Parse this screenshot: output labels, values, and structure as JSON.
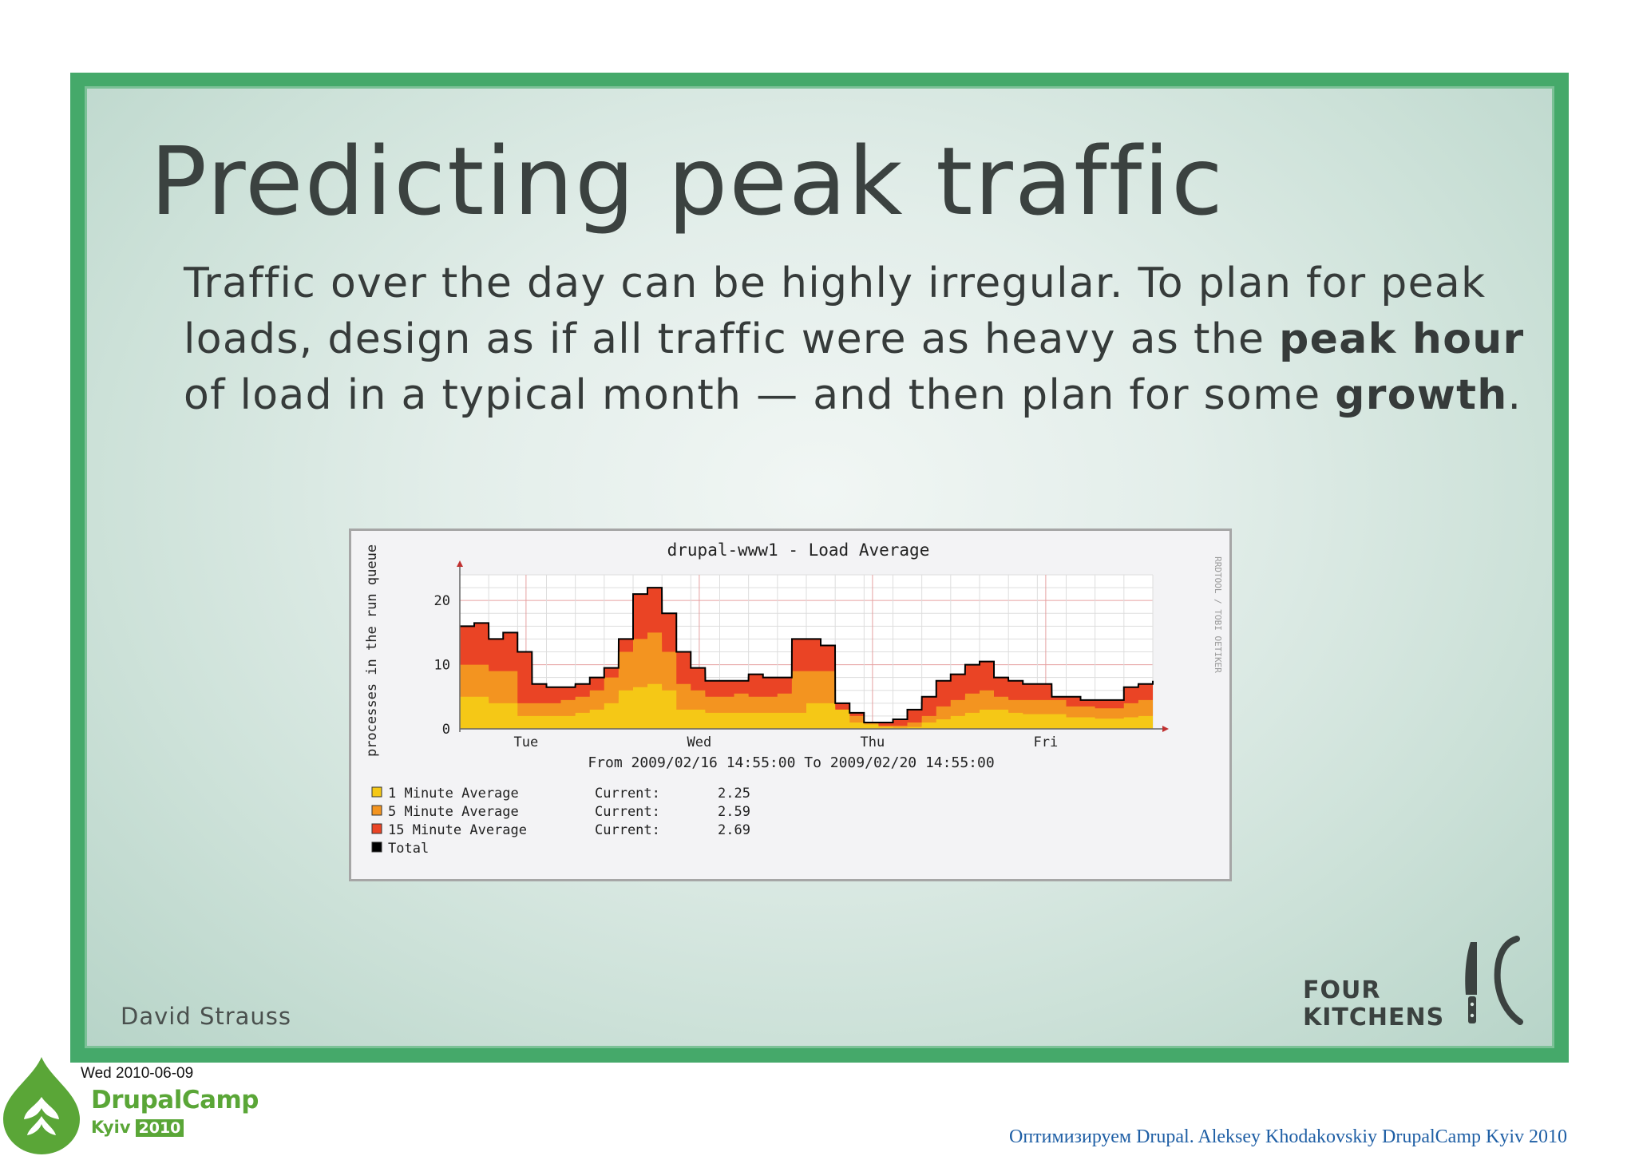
{
  "slide": {
    "title": "Predicting peak traffic",
    "body_part1": "Traffic over the day can be highly irregular. To plan for peak loads, design as if all traffic were as heavy as the ",
    "body_bold1": "peak hour",
    "body_part2": " of load in a typical month — and then plan for some ",
    "body_bold2": "growth",
    "body_part3": ".",
    "author": "David Strauss",
    "logo_line1": "FOUR",
    "logo_line2": "KITCHENS"
  },
  "footer": {
    "date": "Wed 2010-06-09",
    "event_name": "DrupalCamp",
    "event_city": "Kyiv",
    "event_year": "2010",
    "credit": "Оптимизируем Drupal.  Aleksey Khodakovskiy DrupalCamp Kyiv 2010"
  },
  "colors": {
    "frame": "#45a96a",
    "series_1min": "#f5c816",
    "series_5min": "#f39420",
    "series_15min": "#ea4425",
    "total": "#000000",
    "credit_text": "#1f5fa5"
  },
  "chart_data": {
    "type": "area",
    "title": "drupal-www1 - Load Average",
    "ylabel": "processes in the run queue",
    "side_label": "RRDTOOL / TOBI OETIKER",
    "range_label": "From 2009/02/16 14:55:00 To 2009/02/20 14:55:00",
    "x_ticks": [
      "Tue",
      "Wed",
      "Thu",
      "Fri"
    ],
    "x_tick_days": [
      0.382,
      1.382,
      2.382,
      3.382
    ],
    "y_ticks": [
      0,
      10,
      20
    ],
    "ylim": [
      0,
      24
    ],
    "xlim_days": [
      0,
      4
    ],
    "grid": true,
    "x_days": [
      0.0,
      0.083,
      0.167,
      0.25,
      0.333,
      0.417,
      0.5,
      0.583,
      0.667,
      0.75,
      0.833,
      0.917,
      1.0,
      1.083,
      1.167,
      1.25,
      1.333,
      1.417,
      1.5,
      1.583,
      1.667,
      1.75,
      1.833,
      1.917,
      2.0,
      2.083,
      2.167,
      2.25,
      2.333,
      2.417,
      2.5,
      2.583,
      2.667,
      2.75,
      2.833,
      2.917,
      3.0,
      3.083,
      3.167,
      3.25,
      3.333,
      3.417,
      3.5,
      3.583,
      3.667,
      3.75,
      3.833,
      3.917,
      4.0
    ],
    "series": [
      {
        "name": "1 Minute Average",
        "current": "2.25",
        "values": [
          5,
          5,
          4,
          4,
          2,
          2,
          2,
          2,
          2.5,
          3,
          4,
          6,
          6.5,
          7,
          6,
          3,
          3,
          2.5,
          2.5,
          2.5,
          2.5,
          2.5,
          2.5,
          2.5,
          4,
          4,
          3,
          1,
          0.7,
          0.3,
          0.2,
          0.3,
          1,
          1.5,
          2,
          2.5,
          3,
          3,
          2.5,
          2.3,
          2.3,
          2.3,
          1.8,
          1.8,
          1.6,
          1.6,
          1.8,
          2,
          2.25
        ]
      },
      {
        "name": "5 Minute Average",
        "current": "2.59",
        "values": [
          10,
          10,
          9,
          9,
          4,
          4,
          4,
          4.5,
          5,
          6,
          8,
          12,
          14,
          15,
          12,
          7,
          6,
          5,
          5,
          5.5,
          5,
          5,
          5.5,
          9,
          9,
          9,
          3,
          2,
          1,
          0.5,
          0.5,
          1,
          2,
          3.5,
          4.5,
          5.5,
          6,
          5,
          4.5,
          4.5,
          4.5,
          4.5,
          3.5,
          3.5,
          3.2,
          3.2,
          4,
          4.5,
          5
        ]
      },
      {
        "name": "15 Minute Average",
        "current": "2.69",
        "values": [
          16,
          16.5,
          14,
          15,
          12,
          7,
          6.5,
          6.5,
          7,
          8,
          9.5,
          14,
          21,
          22,
          18,
          12,
          9.5,
          7.5,
          7.5,
          7.5,
          8.5,
          8,
          8,
          14,
          14,
          13,
          4,
          2.5,
          1,
          1,
          1.5,
          3,
          5,
          7.5,
          8.5,
          10,
          10.5,
          8,
          7.5,
          7,
          7,
          5,
          5,
          4.5,
          4.5,
          4.5,
          6.5,
          7,
          7.5
        ]
      },
      {
        "name": "Total"
      }
    ]
  }
}
